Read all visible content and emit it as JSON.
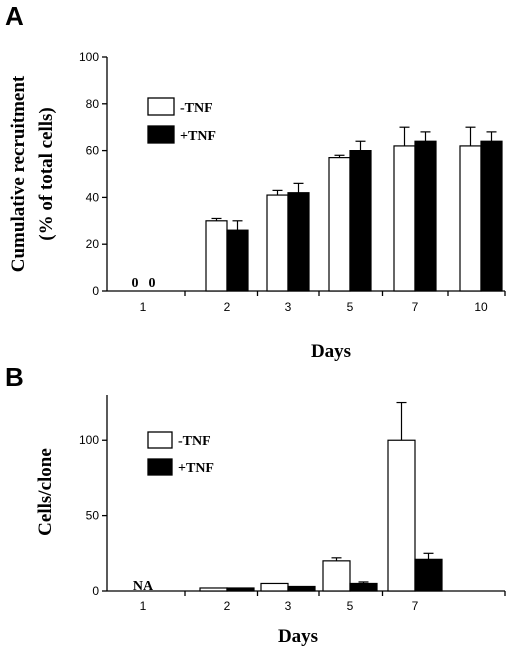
{
  "colors": {
    "minus": "#ffffff",
    "plus": "#000000",
    "stroke": "#000000"
  },
  "chart_data": [
    {
      "panel": "A",
      "type": "bar",
      "categories": [
        "1",
        "2",
        "3",
        "5",
        "7",
        "10"
      ],
      "series": [
        {
          "name": "-TNF",
          "values": [
            0,
            30,
            41,
            57,
            62,
            62
          ],
          "errors": [
            0,
            1,
            2,
            1,
            8,
            8
          ]
        },
        {
          "name": "+TNF",
          "values": [
            0,
            26,
            42,
            60,
            64,
            64
          ],
          "errors": [
            0,
            4,
            4,
            4,
            4,
            4
          ]
        }
      ],
      "xlabel": "Days",
      "ylabel_lines": [
        "Cumulative recruitment",
        "(% of total cells)"
      ],
      "ylim": [
        0,
        100
      ],
      "yticks": [
        "0",
        "20",
        "40",
        "60",
        "80",
        "100"
      ],
      "annotations": [
        "0",
        "0"
      ],
      "legend": "top-left",
      "grid": false
    },
    {
      "panel": "B",
      "type": "bar",
      "categories": [
        "1",
        "2",
        "3",
        "5",
        "7"
      ],
      "series": [
        {
          "name": "-TNF",
          "values": [
            null,
            2,
            5,
            20,
            100
          ],
          "errors": [
            0,
            0,
            0,
            2,
            25
          ]
        },
        {
          "name": "+TNF",
          "values": [
            null,
            2,
            3,
            5,
            21
          ],
          "errors": [
            0,
            0,
            0,
            1,
            4
          ]
        }
      ],
      "xlabel": "Days",
      "ylabel_lines": [
        "Cells/clone"
      ],
      "ylim": [
        0,
        130
      ],
      "yticks": [
        "0",
        "50",
        "100"
      ],
      "annotations": [
        "NA"
      ],
      "legend": "top-left",
      "grid": false
    }
  ]
}
